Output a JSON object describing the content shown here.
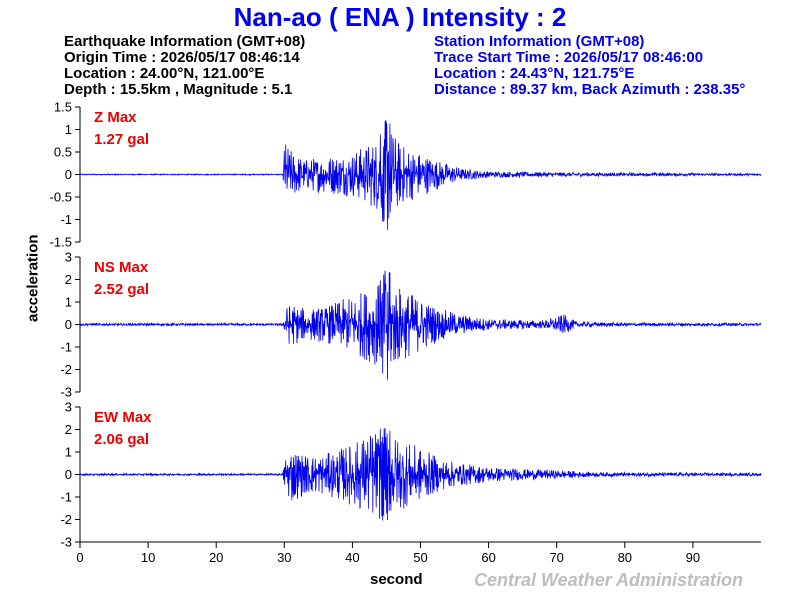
{
  "title": "Nan-ao ( ENA ) Intensity : 2",
  "earthquake_info": {
    "heading": "Earthquake Information  (GMT+08)",
    "origin_time": "Origin Time : 2026/05/17 08:46:14",
    "location": "Location : 24.00°N, 121.00°E",
    "depth_magnitude": "Depth : 15.5km , Magnitude : 5.1"
  },
  "station_info": {
    "heading": "Station Information  (GMT+08)",
    "trace_start": "Trace Start Time : 2026/05/17 08:46:00",
    "location": "Location : 24.43°N, 121.75°E",
    "distance": "Distance : 89.37 km, Back Azimuth : 238.35°"
  },
  "footer": {
    "credit": "Central Weather Administration"
  },
  "chart_data": {
    "type": "line",
    "xlabel": "second",
    "ylabel": "acceleration",
    "xlim": [
      0,
      100
    ],
    "x_ticks": [
      0,
      10,
      20,
      30,
      40,
      50,
      60,
      70,
      80,
      90
    ],
    "line_color": "#0000ee",
    "max_label_color": "#ee0000",
    "p_arrival_s": 30,
    "panels": [
      {
        "component": "Z",
        "max_label": "Z Max",
        "max_value": "1.27 gal",
        "ylim": [
          -1.5,
          1.5
        ],
        "y_ticks": [
          -1.5,
          -1,
          -0.5,
          0,
          0.5,
          1,
          1.5
        ],
        "y_tick_labels": [
          "-1.5",
          "-1",
          "-0.5",
          "0",
          "0.5",
          "1",
          "1.5"
        ],
        "envelope": [
          [
            0,
            0.012
          ],
          [
            29.8,
            0.012
          ],
          [
            30,
            0.8
          ],
          [
            31,
            0.55
          ],
          [
            33,
            0.35
          ],
          [
            36,
            0.42
          ],
          [
            40,
            0.5
          ],
          [
            44,
            0.85
          ],
          [
            45,
            1.27
          ],
          [
            47,
            0.7
          ],
          [
            50,
            0.5
          ],
          [
            53,
            0.3
          ],
          [
            56,
            0.14
          ],
          [
            60,
            0.07
          ],
          [
            70,
            0.05
          ],
          [
            80,
            0.035
          ],
          [
            100,
            0.025
          ]
        ]
      },
      {
        "component": "NS",
        "max_label": "NS Max",
        "max_value": "2.52 gal",
        "ylim": [
          -3,
          3
        ],
        "y_ticks": [
          -3,
          -2,
          -1,
          0,
          1,
          2,
          3
        ],
        "y_tick_labels": [
          "-3",
          "-2",
          "-1",
          "0",
          "1",
          "2",
          "3"
        ],
        "envelope": [
          [
            0,
            0.05
          ],
          [
            29.8,
            0.05
          ],
          [
            30,
            0.7
          ],
          [
            31,
            1.0
          ],
          [
            33,
            0.7
          ],
          [
            36,
            0.8
          ],
          [
            40,
            1.3
          ],
          [
            44,
            1.9
          ],
          [
            45,
            2.52
          ],
          [
            47,
            1.7
          ],
          [
            50,
            1.2
          ],
          [
            53,
            0.7
          ],
          [
            56,
            0.45
          ],
          [
            60,
            0.25
          ],
          [
            68,
            0.18
          ],
          [
            71,
            0.45
          ],
          [
            73,
            0.12
          ],
          [
            80,
            0.08
          ],
          [
            100,
            0.06
          ]
        ]
      },
      {
        "component": "EW",
        "max_label": "EW Max",
        "max_value": "2.06 gal",
        "ylim": [
          -3,
          3
        ],
        "y_ticks": [
          -3,
          -2,
          -1,
          0,
          1,
          2,
          3
        ],
        "y_tick_labels": [
          "-3",
          "-2",
          "-1",
          "0",
          "1",
          "2",
          "3"
        ],
        "envelope": [
          [
            0,
            0.04
          ],
          [
            29.8,
            0.04
          ],
          [
            30,
            0.8
          ],
          [
            31,
            1.3
          ],
          [
            33,
            0.9
          ],
          [
            36,
            0.9
          ],
          [
            40,
            1.4
          ],
          [
            43,
            2.0
          ],
          [
            45,
            2.06
          ],
          [
            47,
            1.6
          ],
          [
            50,
            1.2
          ],
          [
            53,
            0.7
          ],
          [
            56,
            0.5
          ],
          [
            60,
            0.35
          ],
          [
            65,
            0.25
          ],
          [
            70,
            0.2
          ],
          [
            75,
            0.1
          ],
          [
            100,
            0.06
          ]
        ]
      }
    ]
  }
}
